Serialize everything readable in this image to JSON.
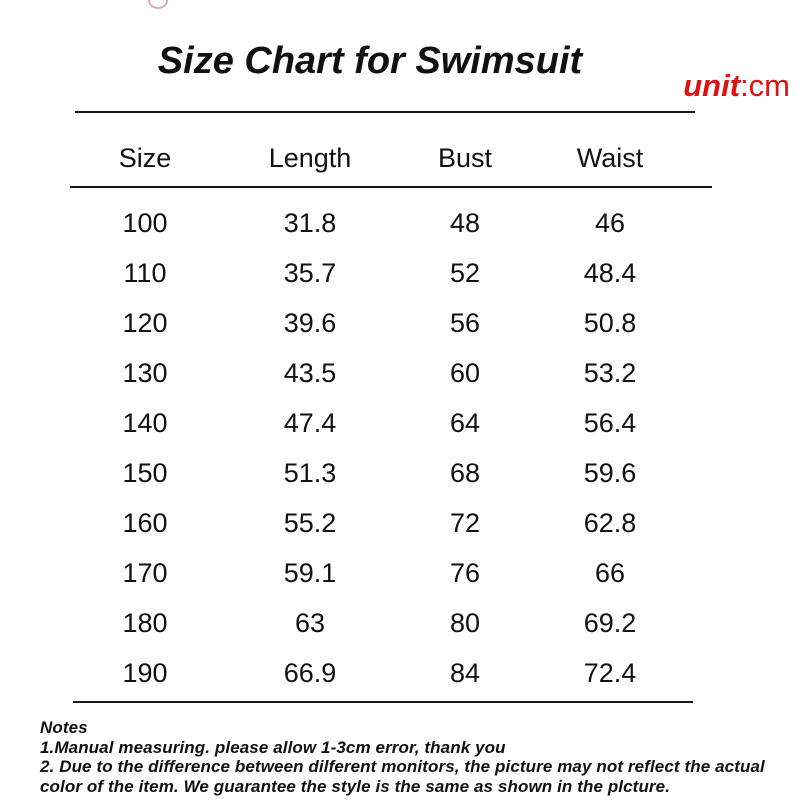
{
  "page": {
    "title": "Size Chart for Swimsuit",
    "unit_label": "unit",
    "unit_value": ":cm"
  },
  "table": {
    "headers": [
      "Size",
      "Length",
      "Bust",
      "Waist"
    ],
    "rows": [
      [
        "100",
        "31.8",
        "48",
        "46"
      ],
      [
        "110",
        "35.7",
        "52",
        "48.4"
      ],
      [
        "120",
        "39.6",
        "56",
        "50.8"
      ],
      [
        "130",
        "43.5",
        "60",
        "53.2"
      ],
      [
        "140",
        "47.4",
        "64",
        "56.4"
      ],
      [
        "150",
        "51.3",
        "68",
        "59.6"
      ],
      [
        "160",
        "55.2",
        "72",
        "62.8"
      ],
      [
        "170",
        "59.1",
        "76",
        "66"
      ],
      [
        "180",
        "63",
        "80",
        "69.2"
      ],
      [
        "190",
        "66.9",
        "84",
        "72.4"
      ]
    ]
  },
  "notes": {
    "heading": "Notes",
    "lines": [
      "1.Manual measuring. please allow 1-3cm error, thank you",
      "2. Due to the difference between dilferent monitors, the picture may not reflect the actual color of the item. We guarantee the style is the same as shown in the plcture."
    ]
  },
  "colors": {
    "accent_red": "#e01111",
    "text": "#111111"
  }
}
